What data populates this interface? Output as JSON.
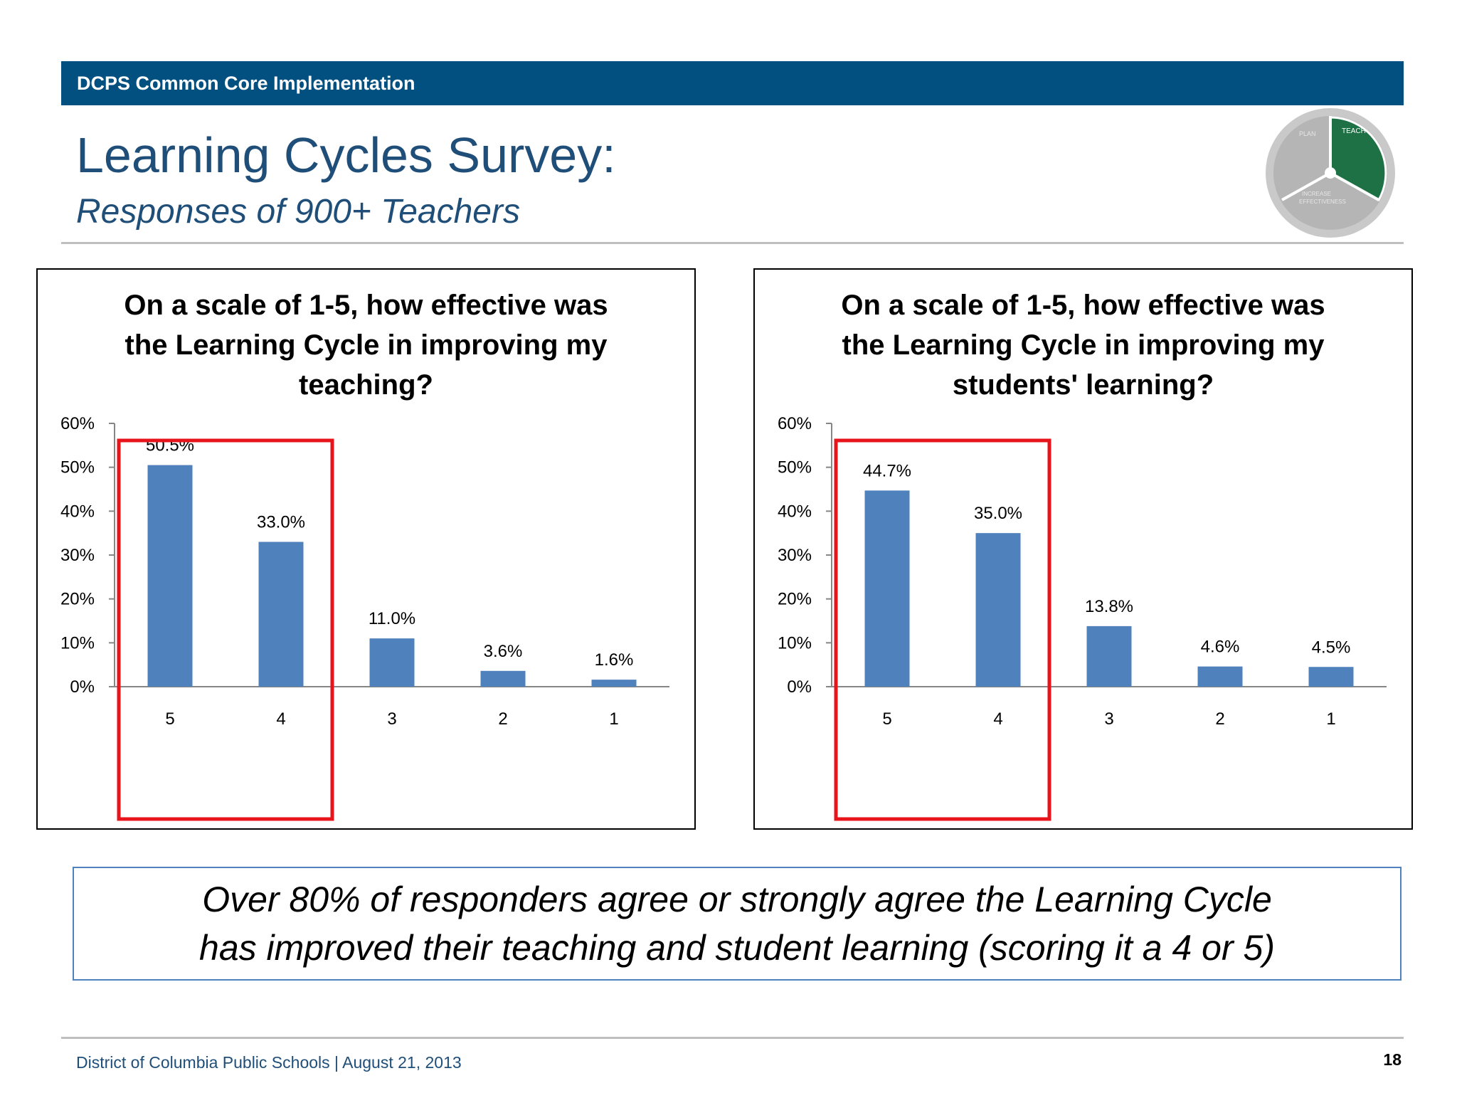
{
  "header": {
    "label": "DCPS Common Core Implementation"
  },
  "slide": {
    "title": "Learning Cycles Survey:",
    "subtitle": "Responses of 900+ Teachers"
  },
  "logo": {
    "icon": "teach-cycle-wheel-icon",
    "teach_label": "TEACH",
    "plan_label": "PLAN",
    "increase_label": "INCREASE",
    "effectiveness_label": "EFFECTIVENESS"
  },
  "chart_data": [
    {
      "type": "bar",
      "title": "On a scale of 1-5, how effective was\nthe Learning Cycle in improving my\nteaching?",
      "categories": [
        "5",
        "4",
        "3",
        "2",
        "1"
      ],
      "values": [
        50.5,
        33.0,
        11.0,
        3.6,
        1.6
      ],
      "data_labels": [
        "50.5%",
        "33.0%",
        "11.0%",
        "3.6%",
        "1.6%"
      ],
      "ylim": [
        0,
        60
      ],
      "y_ticks": [
        "0%",
        "10%",
        "20%",
        "30%",
        "40%",
        "50%",
        "60%"
      ],
      "xlabel": "",
      "ylabel": "",
      "grid": false,
      "bar_color": "#4f81bd",
      "highlight": {
        "categories": [
          "5",
          "4"
        ],
        "color": "#e8141b"
      }
    },
    {
      "type": "bar",
      "title": "On a scale of 1-5, how effective was\nthe Learning Cycle in improving my\nstudents' learning?",
      "categories": [
        "5",
        "4",
        "3",
        "2",
        "1"
      ],
      "values": [
        44.7,
        35.0,
        13.8,
        4.6,
        4.5
      ],
      "data_labels": [
        "44.7%",
        "35.0%",
        "13.8%",
        "4.6%",
        "4.5%"
      ],
      "ylim": [
        0,
        60
      ],
      "y_ticks": [
        "0%",
        "10%",
        "20%",
        "30%",
        "40%",
        "50%",
        "60%"
      ],
      "xlabel": "",
      "ylabel": "",
      "grid": false,
      "bar_color": "#4f81bd",
      "highlight": {
        "categories": [
          "5",
          "4"
        ],
        "color": "#e8141b"
      }
    }
  ],
  "callout": {
    "text": "Over 80% of responders agree or strongly agree the Learning Cycle\nhas improved their teaching and student learning (scoring it a 4 or 5)",
    "border_color": "#4f81bd"
  },
  "footer": {
    "text": "District of Columbia Public Schools  |  August 21, 2013",
    "page_number": "18"
  }
}
